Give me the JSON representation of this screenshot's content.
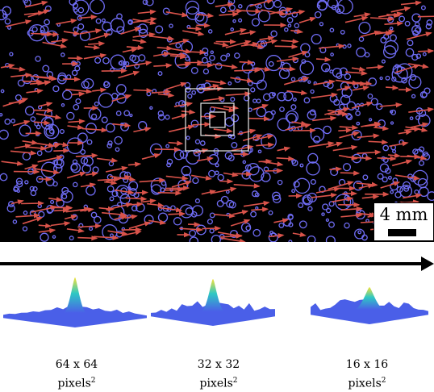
{
  "scale_bar": {
    "label": "4 mm"
  },
  "windows": [
    {
      "caption": "64 x 64",
      "unit": "pixels",
      "exponent": "2"
    },
    {
      "caption": "32 x 32",
      "unit": "pixels",
      "exponent": "2"
    },
    {
      "caption": "16 x 16",
      "unit": "pixels",
      "exponent": "2"
    }
  ],
  "colors": {
    "background": "#000000",
    "particle": "#6f6cf4",
    "vector": "#d9534a",
    "window_outline": "#e8e8e8",
    "peak_base": "#4a5fe8",
    "peak_mid": "#2ec8c4",
    "peak_top": "#f3e23a"
  }
}
